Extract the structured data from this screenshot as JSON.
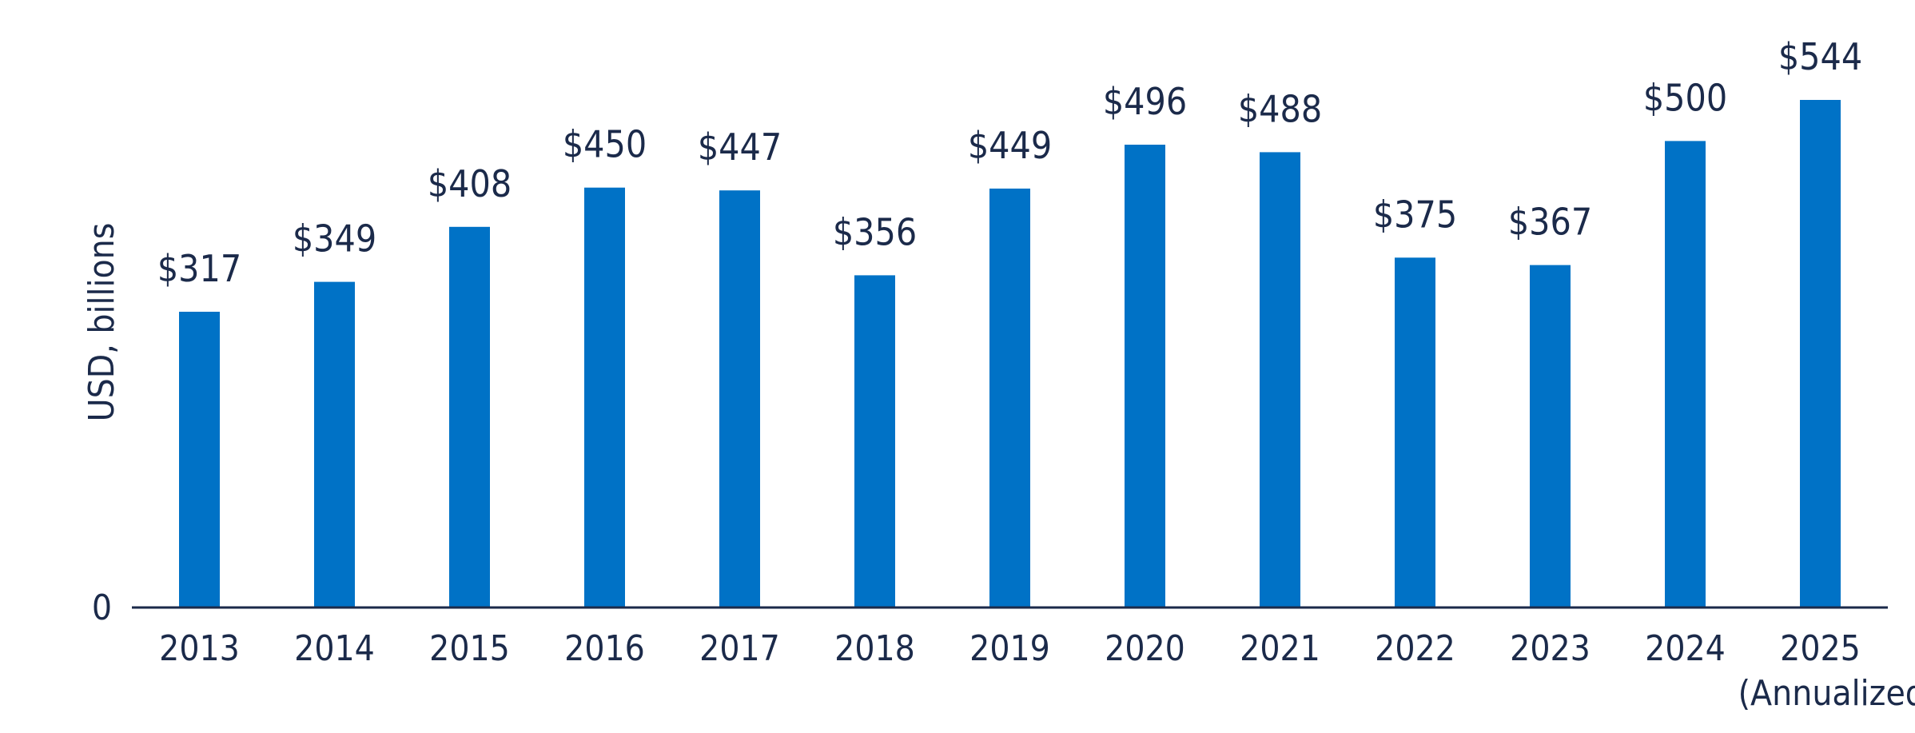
{
  "chart_data": {
    "type": "bar",
    "categories": [
      "2013",
      "2014",
      "2015",
      "2016",
      "2017",
      "2018",
      "2019",
      "2020",
      "2021",
      "2022",
      "2023",
      "2024",
      "2025"
    ],
    "category_sublabels": [
      "",
      "",
      "",
      "",
      "",
      "",
      "",
      "",
      "",
      "",
      "",
      "",
      "(Annualized)"
    ],
    "values": [
      317,
      349,
      408,
      450,
      447,
      356,
      449,
      496,
      488,
      375,
      367,
      500,
      544
    ],
    "data_labels": [
      "$317",
      "$349",
      "$408",
      "$450",
      "$447",
      "$356",
      "$449",
      "$496",
      "$488",
      "$375",
      "$367",
      "$500",
      "$544"
    ],
    "ylabel": "USD, billions",
    "y_tick_labels": [
      "0"
    ],
    "ylim": [
      0,
      544
    ],
    "grid": false,
    "legend": "none",
    "colors": {
      "bar": "#0072c6",
      "text": "#1b2a4a",
      "axis": "#1b2a4a"
    }
  }
}
